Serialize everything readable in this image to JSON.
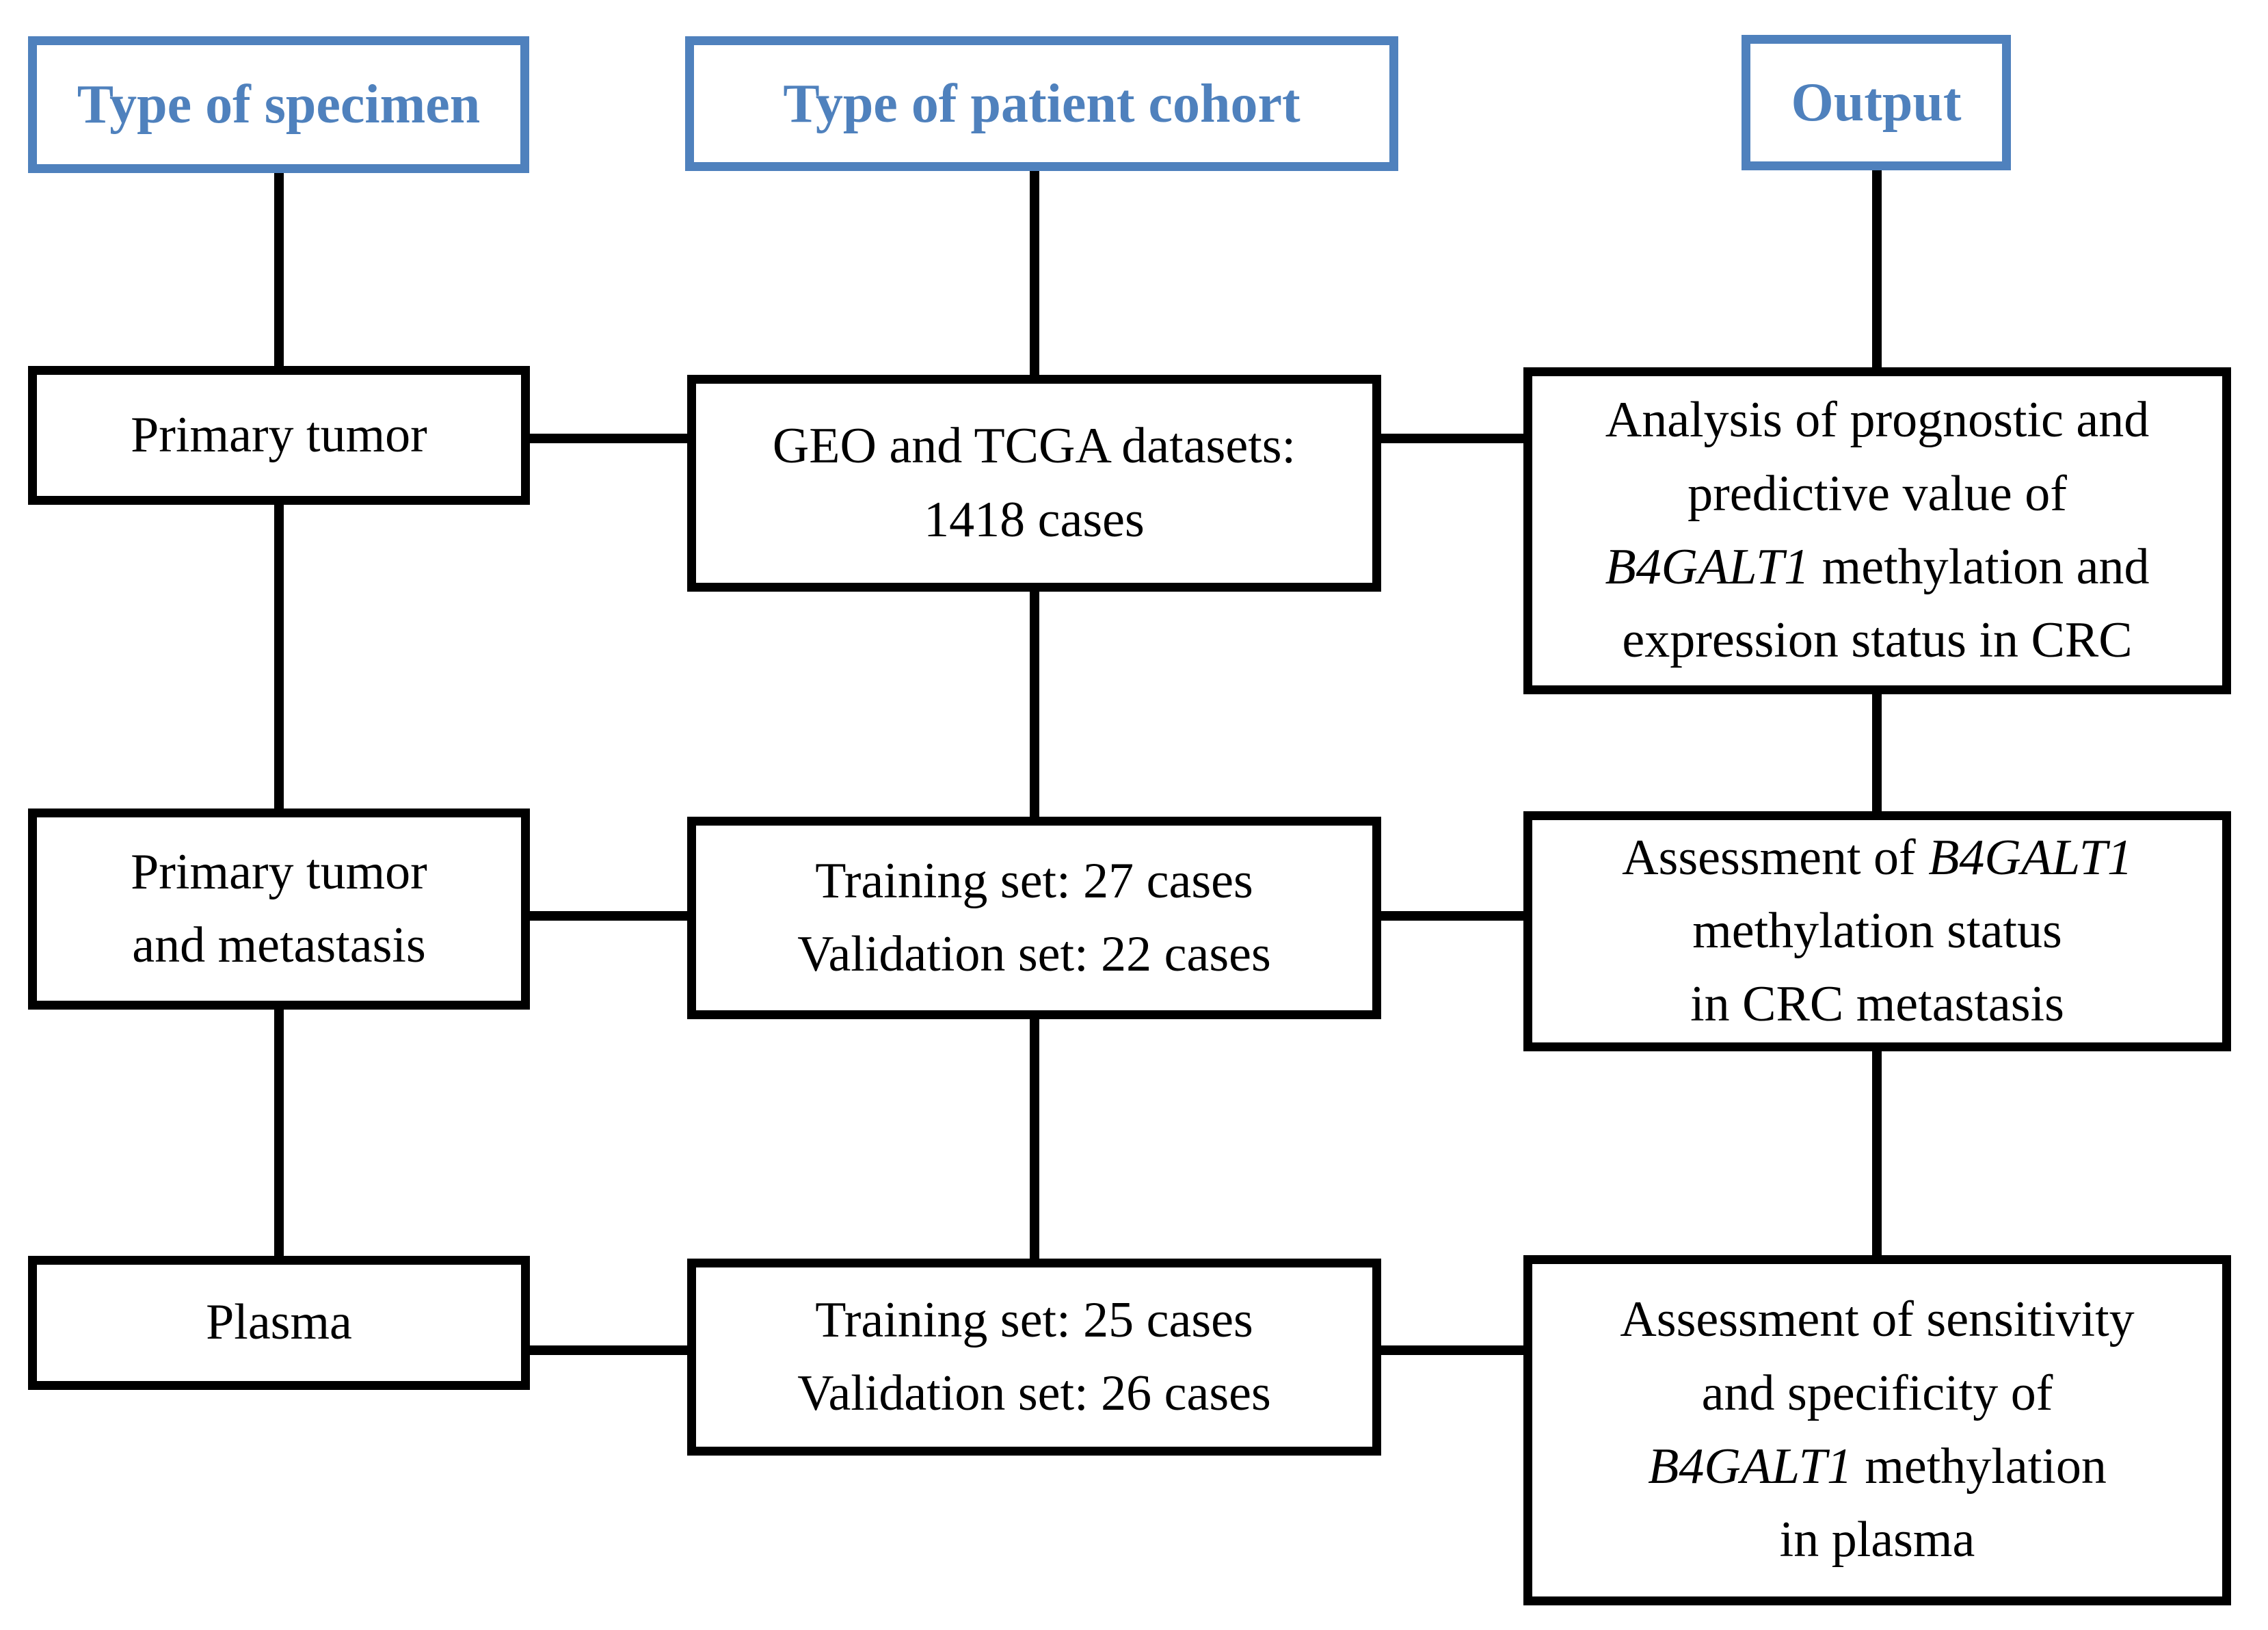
{
  "colors": {
    "accent_blue": "#4F81BD",
    "line_black": "#000000",
    "background": "#FFFFFF"
  },
  "headers": [
    {
      "label": "Type of specimen"
    },
    {
      "label": "Type of patient cohort"
    },
    {
      "label": "Output"
    }
  ],
  "boxes": {
    "r1c1": {
      "lines": [
        [
          {
            "text": "Primary tumor"
          }
        ]
      ]
    },
    "r1c2": {
      "lines": [
        [
          {
            "text": "GEO and TCGA datasets:"
          }
        ],
        [
          {
            "text": "1418 cases"
          }
        ]
      ]
    },
    "r1c3": {
      "lines": [
        [
          {
            "text": "Analysis of prognostic and"
          }
        ],
        [
          {
            "text": "predictive value of"
          }
        ],
        [
          {
            "text": "B4GALT1",
            "italic": true
          },
          {
            "text": " methylation and"
          }
        ],
        [
          {
            "text": "expression status in CRC"
          }
        ]
      ]
    },
    "r2c1": {
      "lines": [
        [
          {
            "text": "Primary tumor"
          }
        ],
        [
          {
            "text": "and metastasis"
          }
        ]
      ]
    },
    "r2c2": {
      "lines": [
        [
          {
            "text": "Training set: 27 cases"
          }
        ],
        [
          {
            "text": "Validation set: 22 cases"
          }
        ]
      ]
    },
    "r2c3": {
      "lines": [
        [
          {
            "text": "Assessment of "
          },
          {
            "text": "B4GALT1",
            "italic": true
          }
        ],
        [
          {
            "text": "methylation status"
          }
        ],
        [
          {
            "text": "in CRC metastasis"
          }
        ]
      ]
    },
    "r3c1": {
      "lines": [
        [
          {
            "text": "Plasma"
          }
        ]
      ]
    },
    "r3c2": {
      "lines": [
        [
          {
            "text": "Training set: 25 cases"
          }
        ],
        [
          {
            "text": "Validation set: 26 cases"
          }
        ]
      ]
    },
    "r3c3": {
      "lines": [
        [
          {
            "text": "Assessment of sensitivity"
          }
        ],
        [
          {
            "text": "and specificity of"
          }
        ],
        [
          {
            "text": "B4GALT1",
            "italic": true
          },
          {
            "text": " methylation"
          }
        ],
        [
          {
            "text": "in plasma"
          }
        ]
      ]
    }
  }
}
